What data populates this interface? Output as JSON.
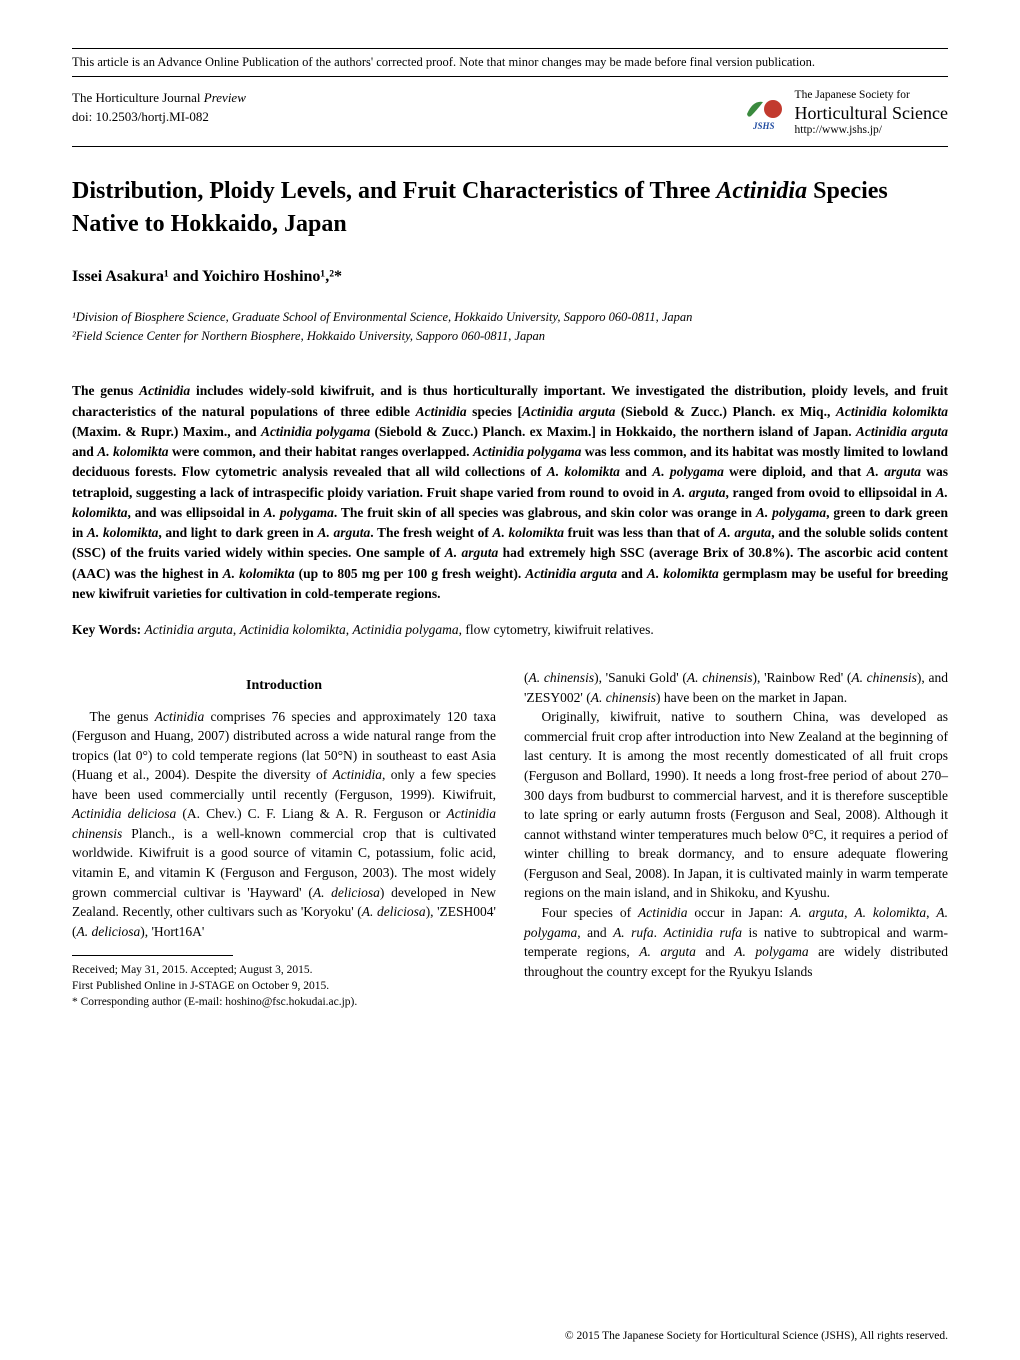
{
  "banner": "This article is an Advance Online Publication of the authors' corrected proof. Note that minor changes may be made before final version publication.",
  "journal": {
    "name_line": "The Horticulture Journal Preview",
    "doi_line": "doi: 10.2503/hortj.MI-082",
    "preview_italic": "Preview"
  },
  "society": {
    "line1": "The Japanese Society for",
    "line2": "Horticultural Science",
    "line3": "http://www.jshs.jp/",
    "logo_text": "JSHS",
    "logo_colors": {
      "leaf": "#3a8a3e",
      "fruit": "#c23a2e",
      "text": "#1e4aa0"
    }
  },
  "title": {
    "pre": "Distribution, Ploidy Levels, and Fruit Characteristics of Three ",
    "ital": "Actinidia",
    "post": " Species Native to Hokkaido, Japan"
  },
  "authors": "Issei Asakura¹ and Yoichiro Hoshino¹,²*",
  "affiliations": {
    "a1": "¹Division of Biosphere Science, Graduate School of Environmental Science, Hokkaido University, Sapporo 060-0811, Japan",
    "a2": "²Field Science Center for Northern Biosphere, Hokkaido University, Sapporo 060-0811, Japan"
  },
  "abstract_html": "The genus <span class=\"ital\">Actinidia</span> includes widely-sold kiwifruit, and is thus horticulturally important. We investigated the distribution, ploidy levels, and fruit characteristics of the natural populations of three edible <span class=\"ital\">Actinidia</span> species [<span class=\"ital\">Actinidia arguta</span> (Siebold & Zucc.) Planch. ex Miq., <span class=\"ital\">Actinidia kolomikta</span> (Maxim. & Rupr.) Maxim., and <span class=\"ital\">Actinidia polygama</span> (Siebold & Zucc.) Planch. ex Maxim.] in Hokkaido, the northern island of Japan. <span class=\"ital\">Actinidia arguta</span> and <span class=\"ital\">A. kolomikta</span> were common, and their habitat ranges overlapped. <span class=\"ital\">Actinidia polygama</span> was less common, and its habitat was mostly limited to lowland deciduous forests. Flow cytometric analysis revealed that all wild collections of <span class=\"ital\">A. kolomikta</span> and <span class=\"ital\">A. polygama</span> were diploid, and that <span class=\"ital\">A. arguta</span> was tetraploid, suggesting a lack of intraspecific ploidy variation. Fruit shape varied from round to ovoid in <span class=\"ital\">A. arguta</span>, ranged from ovoid to ellipsoidal in <span class=\"ital\">A. kolomikta</span>, and was ellipsoidal in <span class=\"ital\">A. polygama</span>. The fruit skin of all species was glabrous, and skin color was orange in <span class=\"ital\">A. polygama</span>, green to dark green in <span class=\"ital\">A. kolomikta</span>, and light to dark green in <span class=\"ital\">A. arguta</span>. The fresh weight of <span class=\"ital\">A. kolomikta</span> fruit was less than that of <span class=\"ital\">A. arguta</span>, and the soluble solids content (SSC) of the fruits varied widely within species. One sample of <span class=\"ital\">A. arguta</span> had extremely high SSC (average Brix of 30.8%). The ascorbic acid content (AAC) was the highest in <span class=\"ital\">A. kolomikta</span> (up to 805 mg per 100 g fresh weight). <span class=\"ital\">Actinidia arguta</span> and <span class=\"ital\">A. kolomikta</span> germplasm may be useful for breeding new kiwifruit varieties for cultivation in cold-temperate regions.",
  "keywords": {
    "label": "Key Words: ",
    "html": "<span class=\"ital\">Actinidia arguta</span>, <span class=\"ital\">Actinidia kolomikta</span>, <span class=\"ital\">Actinidia polygama</span>, flow cytometry, kiwifruit relatives."
  },
  "intro_heading": "Introduction",
  "left_col_html": "<p>The genus <span class=\"ital\">Actinidia</span> comprises 76 species and approximately 120 taxa (Ferguson and Huang, 2007) distributed across a wide natural range from the tropics (lat 0°) to cold temperate regions (lat 50°N) in southeast to east Asia (Huang et al., 2004). Despite the diversity of <span class=\"ital\">Actinidia</span>, only a few species have been used commercially until recently (Ferguson, 1999). Kiwifruit, <span class=\"ital\">Actinidia deliciosa</span> (A. Chev.) C. F. Liang & A. R. Ferguson or <span class=\"ital\">Actinidia chinensis</span> Planch., is a well-known commercial crop that is cultivated worldwide. Kiwifruit is a good source of vitamin C, potassium, folic acid, vitamin E, and vitamin K (Ferguson and Ferguson, 2003). The most widely grown commercial cultivar is 'Hayward' (<span class=\"ital\">A. deliciosa</span>) developed in New Zealand. Recently, other cultivars such as 'Koryoku' (<span class=\"ital\">A. deliciosa</span>), 'ZESH004' (<span class=\"ital\">A. deliciosa</span>), 'Hort16A'</p>",
  "right_col_html": "<p style=\"text-indent:0\">(<span class=\"ital\">A. chinensis</span>), 'Sanuki Gold' (<span class=\"ital\">A. chinensis</span>), 'Rainbow Red' (<span class=\"ital\">A. chinensis</span>), and 'ZESY002' (<span class=\"ital\">A. chinensis</span>) have been on the market in Japan.</p><p>Originally, kiwifruit, native to southern China, was developed as commercial fruit crop after introduction into New Zealand at the beginning of last century. It is among the most recently domesticated of all fruit crops (Ferguson and Bollard, 1990). It needs a long frost-free period of about 270–300 days from budburst to commercial harvest, and it is therefore susceptible to late spring or early autumn frosts (Ferguson and Seal, 2008). Although it cannot withstand winter temperatures much below 0°C, it requires a period of winter chilling to break dormancy, and to ensure adequate flowering (Ferguson and Seal, 2008). In Japan, it is cultivated mainly in warm temperate regions on the main island, and in Shikoku, and Kyushu.</p><p>Four species of <span class=\"ital\">Actinidia</span> occur in Japan: <span class=\"ital\">A. arguta</span>, <span class=\"ital\">A. kolomikta</span>, <span class=\"ital\">A. polygama</span>, and <span class=\"ital\">A. rufa</span>. <span class=\"ital\">Actinidia rufa</span> is native to subtropical and warm-temperate regions, <span class=\"ital\">A. arguta</span> and <span class=\"ital\">A. polygama</span> are widely distributed throughout the country except for the Ryukyu Islands</p>",
  "footnotes": {
    "f1": "Received; May 31, 2015. Accepted; August 3, 2015.",
    "f2": "First Published Online in J-STAGE on October 9, 2015.",
    "f3": "* Corresponding author (E-mail: hoshino@fsc.hokudai.ac.jp)."
  },
  "copyright": "© 2015 The Japanese Society for Horticultural Science (JSHS), All rights reserved."
}
